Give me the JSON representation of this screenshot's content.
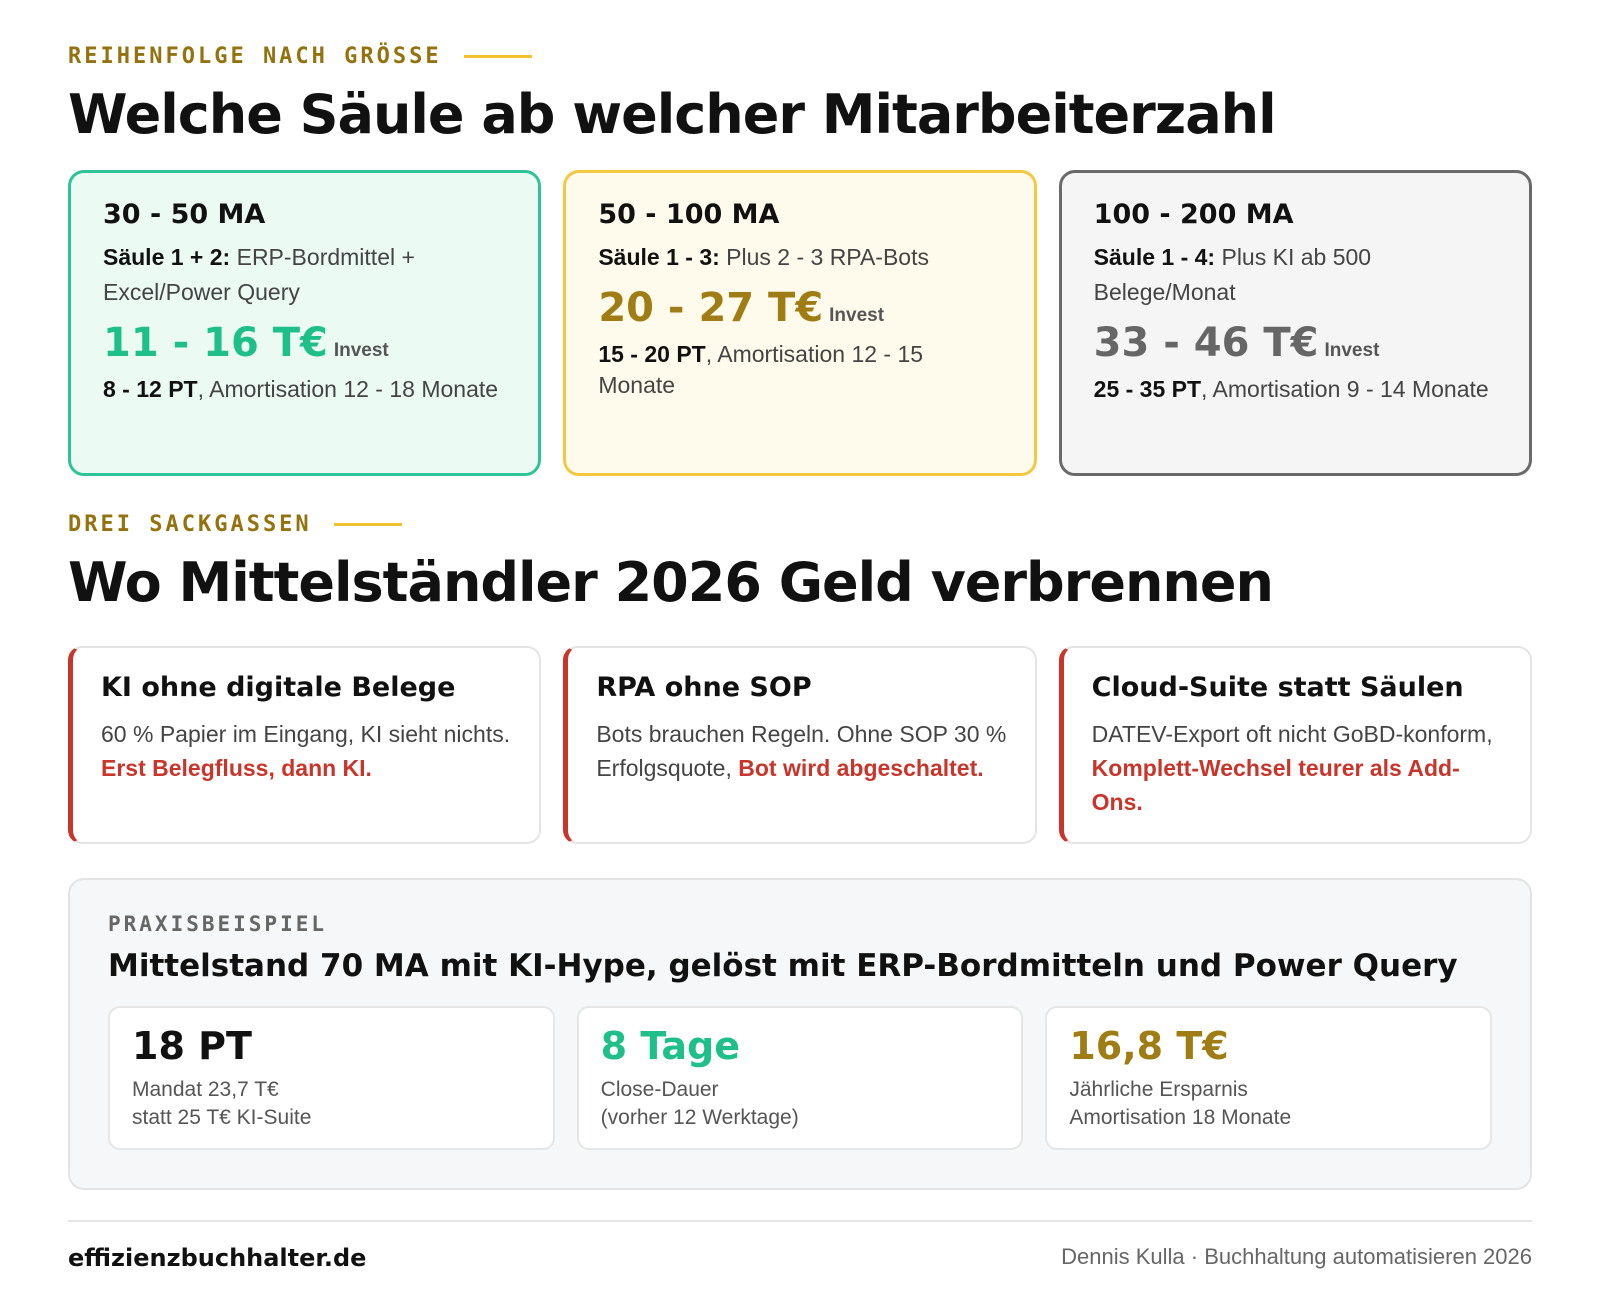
{
  "section1": {
    "eyebrow": "REIHENFOLGE NACH GRÖSSE",
    "title": "Welche Säule ab welcher Mitarbeiterzahl",
    "cards": [
      {
        "range": "30 - 50 MA",
        "label": "Säule 1 + 2:",
        "text": "ERP-Bordmittel + Excel/Power Query",
        "amount": "11 - 16 T€",
        "amount_note": "Invest",
        "effort": "8 - 12 PT",
        "effort_rest": ", Amortisation 12 - 18 Monate"
      },
      {
        "range": "50 - 100 MA",
        "label": "Säule 1 - 3:",
        "text": "Plus 2 - 3 RPA-Bots",
        "amount": "20 - 27 T€",
        "amount_note": "Invest",
        "effort": "15 - 20 PT",
        "effort_rest": ", Amortisation 12 - 15 Monate"
      },
      {
        "range": "100 - 200 MA",
        "label": "Säule 1 - 4:",
        "text": "Plus KI ab 500 Belege/Monat",
        "amount": "33 - 46 T€",
        "amount_note": "Invest",
        "effort": "25 - 35 PT",
        "effort_rest": ", Amortisation 9 - 14 Monate"
      }
    ]
  },
  "section2": {
    "eyebrow": "DREI SACKGASSEN",
    "title": "Wo Mittelständler 2026 Geld verbrennen",
    "cards": [
      {
        "title": "KI ohne digitale Belege",
        "text": "60 % Papier im Eingang, KI sieht nichts.",
        "highlight": "Erst Belegfluss, dann KI."
      },
      {
        "title": "RPA ohne SOP",
        "text": "Bots brauchen Regeln. Ohne SOP 30 % Erfolgsquote,",
        "highlight": "Bot wird abgeschaltet."
      },
      {
        "title": "Cloud-Suite statt Säulen",
        "text": "DATEV-Export oft nicht GoBD-konform,",
        "highlight": "Komplett-Wechsel teurer als Add-Ons."
      }
    ]
  },
  "example": {
    "eyebrow": "PRAXISBEISPIEL",
    "title": "Mittelstand 70 MA mit KI-Hype, gelöst mit ERP-Bordmitteln und Power Query",
    "stats": [
      {
        "value": "18 PT",
        "line1": "Mandat 23,7 T€",
        "line2": "statt 25 T€ KI-Suite"
      },
      {
        "value": "8 Tage",
        "line1": "Close-Dauer",
        "line2": "(vorher 12 Werktage)"
      },
      {
        "value": "16,8 T€",
        "line1": "Jährliche Ersparnis",
        "line2": "Amortisation 18 Monate"
      }
    ]
  },
  "footer": {
    "brand": "effizienzbuchhalter",
    "brand_tld": ".de",
    "credit": "Dennis Kulla · Buchhaltung automatisieren 2026"
  }
}
